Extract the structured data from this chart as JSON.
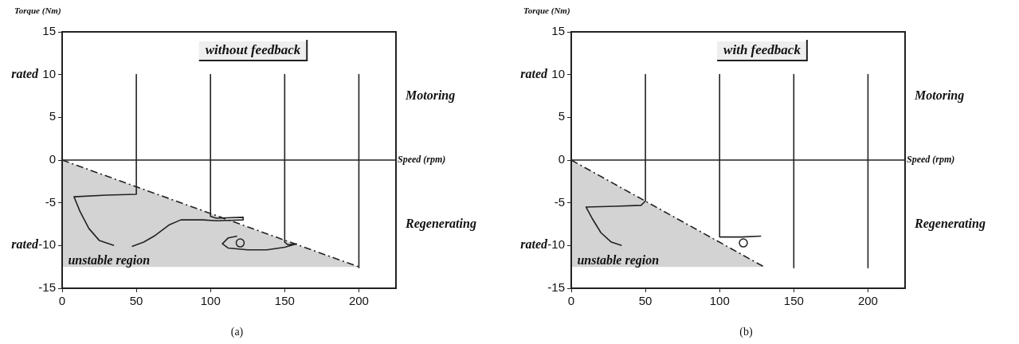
{
  "chart_data": [
    {
      "type": "line",
      "title": "without feedback",
      "xlabel": "Speed (rpm)",
      "ylabel": "Torque (Nm)",
      "xlim": [
        0,
        225
      ],
      "xticks": [
        0,
        50,
        100,
        150,
        200
      ],
      "ylim": [
        -15,
        15
      ],
      "yticks": [
        -15,
        -10,
        -5,
        0,
        5,
        10,
        15
      ],
      "grid": false,
      "legend": false,
      "marker": "none",
      "line_style": "solid",
      "ref_lines": [
        {
          "axis": "y",
          "value": 0,
          "color": "#222222"
        }
      ],
      "annotations": [
        "rated",
        "rated",
        "unstable region",
        "Motoring",
        "Regenerating",
        "(a)"
      ],
      "series": [
        {
          "color": "#222222",
          "x": [
            50,
            50,
            30,
            8,
            12,
            18,
            25,
            35
          ],
          "values": [
            10,
            -4,
            -4.1,
            -4.3,
            -6,
            -8,
            -9.4,
            -10
          ]
        },
        {
          "color": "#222222",
          "x": [
            100,
            100,
            104,
            122,
            122,
            104,
            95,
            80,
            72,
            62,
            55,
            47
          ],
          "values": [
            10,
            -6.6,
            -6.8,
            -6.7,
            -7,
            -7.1,
            -7,
            -7,
            -7.6,
            -8.9,
            -9.6,
            -10.1
          ]
        },
        {
          "color": "#222222",
          "x": [
            150,
            150,
            152,
            158,
            150,
            138,
            125,
            112,
            108,
            112,
            118
          ],
          "values": [
            10,
            -9.6,
            -9.9,
            -9.8,
            -10.2,
            -10.5,
            -10.5,
            -10.3,
            -9.8,
            -9.1,
            -8.9
          ]
        },
        {
          "color": "#222222",
          "x": [
            200,
            200
          ],
          "values": [
            10,
            -12.6
          ]
        },
        {
          "type": "scatter",
          "marker": "circle",
          "color": "#222222",
          "x": [
            120
          ],
          "values": [
            -9.7
          ]
        },
        {
          "color": "#222222",
          "line_style": "dashed",
          "x": [
            0,
            200
          ],
          "values": [
            0,
            -12.5
          ],
          "lower": [
            -12.5,
            -12.5
          ],
          "upper": [
            0,
            -12.5
          ]
        }
      ]
    },
    {
      "type": "line",
      "title": "with feedback",
      "xlabel": "Speed (rpm)",
      "ylabel": "Torque (Nm)",
      "xlim": [
        0,
        225
      ],
      "xticks": [
        0,
        50,
        100,
        150,
        200
      ],
      "ylim": [
        -15,
        15
      ],
      "yticks": [
        -15,
        -10,
        {
          "value": -5,
          "label": "-5"
        },
        0,
        5,
        10,
        15
      ],
      "grid": false,
      "legend": false,
      "marker": "none",
      "line_style": "solid",
      "ref_lines": [
        {
          "axis": "y",
          "value": 0,
          "color": "#222222"
        }
      ],
      "annotations": [
        "rated",
        "rated",
        "unstable region",
        "Motoring",
        "Regenerating",
        "(b)"
      ],
      "series": [
        {
          "color": "#222222",
          "x": [
            50,
            50,
            47,
            30,
            10,
            14,
            20,
            27,
            34
          ],
          "values": [
            10,
            -4.8,
            -5.3,
            -5.4,
            -5.5,
            -6.8,
            -8.5,
            -9.6,
            -10
          ]
        },
        {
          "color": "#222222",
          "x": [
            100,
            100,
            115,
            128
          ],
          "values": [
            10,
            -9,
            -9,
            -8.9
          ]
        },
        {
          "color": "#222222",
          "x": [
            150,
            150
          ],
          "values": [
            10,
            -12.6
          ]
        },
        {
          "color": "#222222",
          "x": [
            200,
            200
          ],
          "values": [
            10,
            -12.6
          ]
        },
        {
          "type": "scatter",
          "marker": "circle",
          "color": "#222222",
          "x": [
            116
          ],
          "values": [
            -9.7
          ]
        },
        {
          "color": "#222222",
          "line_style": "dashed",
          "x": [
            0,
            130
          ],
          "values": [
            0,
            -12.5
          ],
          "lower": [
            -12.5,
            -12.5
          ],
          "upper": [
            0,
            -12.5
          ]
        }
      ]
    }
  ]
}
